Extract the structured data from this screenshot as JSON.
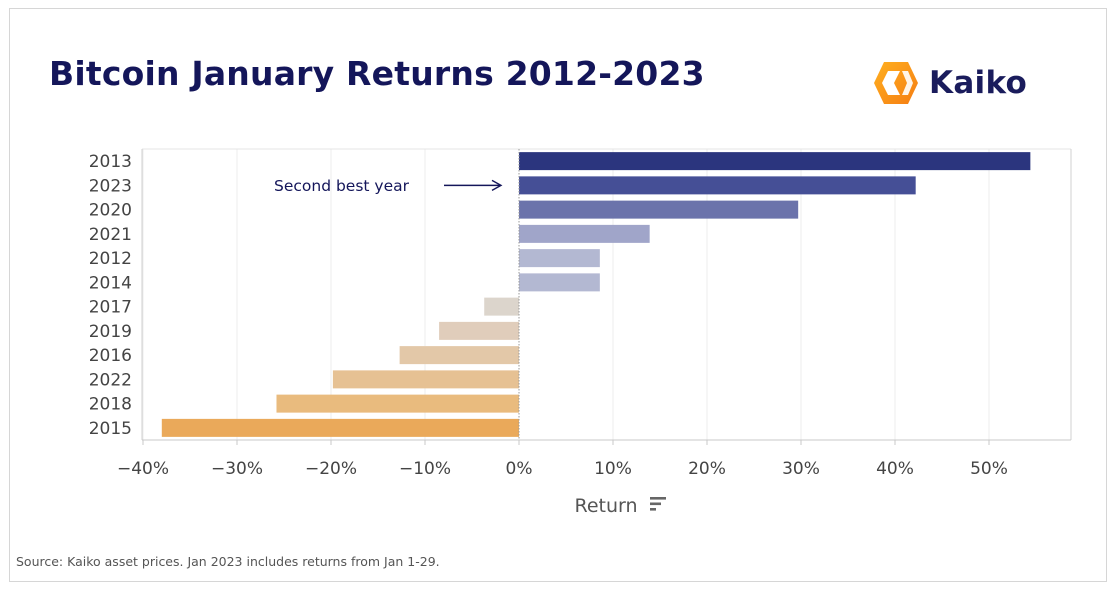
{
  "title": "Bitcoin January Returns 2012-2023",
  "logo": {
    "text": "Kaiko",
    "icon": "kaiko-logo-icon"
  },
  "source": "Source: Kaiko asset prices. Jan 2023 includes returns from Jan 1-29.",
  "chart_data": {
    "type": "bar",
    "orientation": "horizontal",
    "xlabel": "Return",
    "xlabel_icon": "sort-icon",
    "xlim": [
      -40,
      55
    ],
    "xticks": [
      -40,
      -30,
      -20,
      -10,
      0,
      10,
      20,
      30,
      40,
      50
    ],
    "xtick_labels": [
      "−40%",
      "−30%",
      "−20%",
      "−10%",
      "0%",
      "10%",
      "20%",
      "30%",
      "40%",
      "50%"
    ],
    "grid": true,
    "categories": [
      "2013",
      "2023",
      "2020",
      "2021",
      "2012",
      "2014",
      "2017",
      "2019",
      "2016",
      "2022",
      "2018",
      "2015"
    ],
    "values": [
      54.4,
      42.2,
      29.7,
      13.9,
      8.6,
      8.6,
      -3.7,
      -8.5,
      -12.7,
      -19.8,
      -25.8,
      -38.0
    ],
    "colors": [
      "#2b357e",
      "#454f96",
      "#6b73ab",
      "#a0a5c9",
      "#b3b8d2",
      "#b3b8d2",
      "#dcd5cc",
      "#e0cdbb",
      "#e3c8a8",
      "#e6c193",
      "#e9bb7e",
      "#eaa95a"
    ],
    "annotation": {
      "text": "Second best year",
      "target": "2023"
    }
  }
}
